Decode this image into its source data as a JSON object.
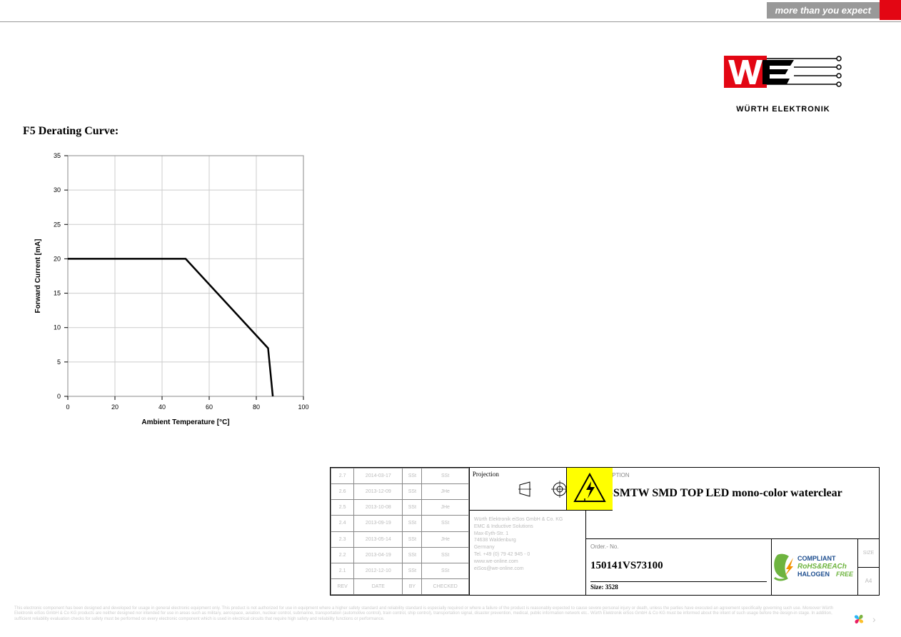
{
  "banner": {
    "tagline": "more than you expect",
    "brand": "WÜRTH ELEKTRONIK"
  },
  "chart": {
    "title": "F5 Derating Curve:",
    "type": "line",
    "xlabel": "Ambient Temperature [°C]",
    "ylabel": "Forward Current  [mA]",
    "xlim": [
      0,
      100
    ],
    "ylim": [
      0,
      35
    ],
    "xtick_step": 20,
    "ytick_step": 5,
    "xticks": [
      0,
      20,
      40,
      60,
      80,
      100
    ],
    "yticks": [
      0,
      5,
      10,
      15,
      20,
      25,
      30,
      35
    ],
    "line_color": "#000000",
    "line_width": 2.5,
    "grid_color": "#cccccc",
    "background_color": "#ffffff",
    "border_color": "#888888",
    "axis_font_size": 9,
    "label_font_size": 10,
    "label_font_weight": "bold",
    "data": [
      {
        "x": 0,
        "y": 20
      },
      {
        "x": 50,
        "y": 20
      },
      {
        "x": 85,
        "y": 7
      },
      {
        "x": 87,
        "y": 0
      }
    ]
  },
  "titleblock": {
    "revisions": {
      "columns": [
        "REV",
        "DATE",
        "BY",
        "CHECKED"
      ],
      "rows": [
        [
          "2.7",
          "2014-03-17",
          "SSt",
          "SSt"
        ],
        [
          "2.6",
          "2013-12-09",
          "SSt",
          "JHe"
        ],
        [
          "2.5",
          "2013-10-08",
          "SSt",
          "JHe"
        ],
        [
          "2.4",
          "2013-09-19",
          "SSt",
          "SSt"
        ],
        [
          "2.3",
          "2013-05-14",
          "SSt",
          "JHe"
        ],
        [
          "2.2",
          "2013-04-19",
          "SSt",
          "SSt"
        ],
        [
          "2.1",
          "2012-12-10",
          "SSt",
          "SSt"
        ]
      ]
    },
    "projection_label": "Projection",
    "address": {
      "line1": "Würth Elektronik eiSos GmbH & Co. KG",
      "line2": "EMC & Inductive Solutions",
      "line3": "Max-Eyth-Str. 1",
      "line4": "74638 Waldenburg",
      "line5": "Germany",
      "line6": "Tel. +49 (0) 79 42 945 - 0",
      "line7": "www.we-online.com",
      "line8": "eiSos@we-online.com"
    },
    "description_label": "DESCRIPTION",
    "description": "WL-SMTW SMD TOP LED mono-color waterclear",
    "order_label": "Order.- No.",
    "order_number": "150141VS73100",
    "size_prefix": "Size:",
    "size": "3528",
    "sheet_label": "SIZE",
    "sheet_value": "A4",
    "compliance": {
      "line1": "COMPLIANT",
      "line2": "RoHS&REACh",
      "line3": "HALOGEN",
      "line3b": "FREE",
      "color_green": "#6eb43f",
      "color_orange": "#f39200",
      "color_text": "#1d4e8f"
    }
  },
  "disclaimer": "This electronic component has been designed and developed for usage in general electronic equipment only. This product is not authorized for use in equipment where a higher safety standard and reliability standard is especially required or where a failure of the product is reasonably expected to cause severe personal injury or death, unless the parties have executed an agreement specifically governing such use. Moreover Würth Elektronik eiSos GmbH & Co KG products are neither designed nor intended for use in areas such as military, aerospace, aviation, nuclear control, submarine, transportation (automotive control), train control, ship control), transportation signal, disaster prevention, medical, public information network etc.. Würth Elektronik eiSos GmbH & Co KG must be informed about the intent of such usage before the design-in stage. In addition, sufficient reliability evaluation checks for safety must be performed on every electronic component which is used in electrical circuits that require high safety and reliability functions or performance.",
  "colors": {
    "brand_red": "#e30613",
    "banner_gray": "#999999",
    "esd_yellow": "#ffff00"
  }
}
